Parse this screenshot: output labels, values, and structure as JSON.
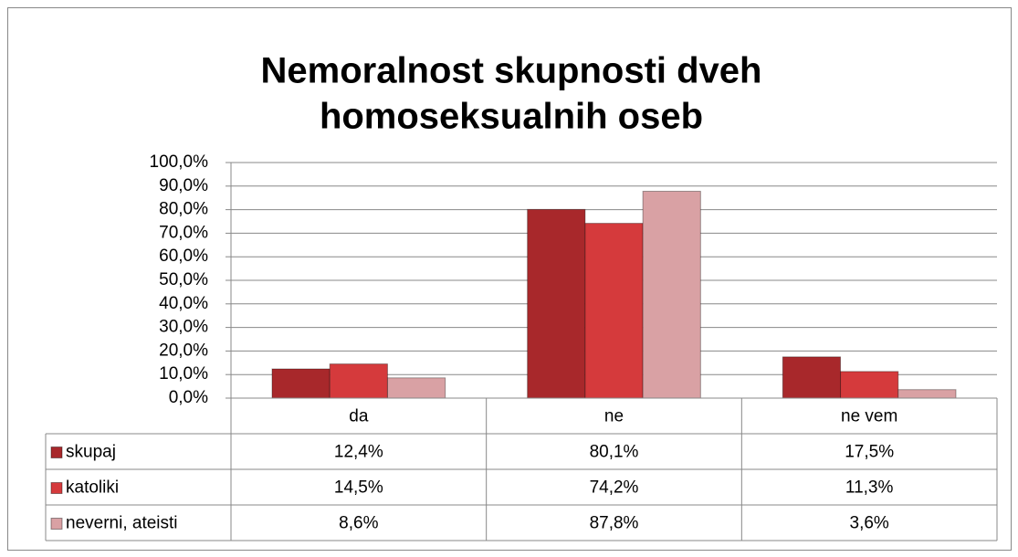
{
  "chart_data": {
    "type": "bar",
    "title": [
      "Nemoralnost skupnosti dveh",
      "homoseksualnih oseb"
    ],
    "categories": [
      "da",
      "ne",
      "ne vem"
    ],
    "series": [
      {
        "name": "skupaj",
        "color": "#a8282b",
        "values": [
          12.4,
          80.1,
          17.5
        ],
        "value_labels": [
          "12,4%",
          "80,1%",
          "17,5%"
        ]
      },
      {
        "name": "katoliki",
        "color": "#d53a3c",
        "values": [
          14.5,
          74.2,
          11.3
        ],
        "value_labels": [
          "14,5%",
          "74,2%",
          "11,3%"
        ]
      },
      {
        "name": "neverni, ateisti",
        "color": "#d9a1a4",
        "values": [
          8.6,
          87.8,
          3.6
        ],
        "value_labels": [
          "8,6%",
          "87,8%",
          "3,6%"
        ]
      }
    ],
    "ylim": [
      0,
      100
    ],
    "yticks": [
      {
        "value": 0,
        "label": "0,0%"
      },
      {
        "value": 10,
        "label": "10,0%"
      },
      {
        "value": 20,
        "label": "20,0%"
      },
      {
        "value": 30,
        "label": "30,0%"
      },
      {
        "value": 40,
        "label": "40,0%"
      },
      {
        "value": 50,
        "label": "50,0%"
      },
      {
        "value": 60,
        "label": "60,0%"
      },
      {
        "value": 70,
        "label": "70,0%"
      },
      {
        "value": 80,
        "label": "80,0%"
      },
      {
        "value": 90,
        "label": "90,0%"
      },
      {
        "value": 100,
        "label": "100,0%"
      }
    ],
    "grid": true,
    "data_table": true
  }
}
